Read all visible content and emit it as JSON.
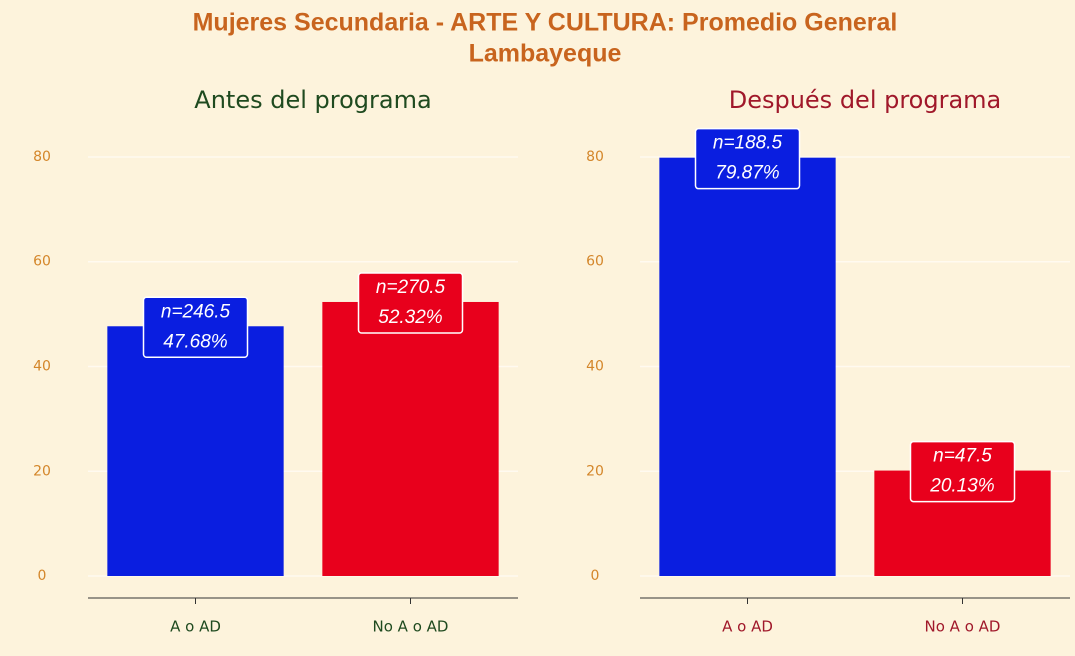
{
  "title": [
    "Mujeres Secundaria - ARTE Y CULTURA: Promedio General",
    "Lambayeque"
  ],
  "chart_data": [
    {
      "type": "bar",
      "title": "Antes del programa",
      "title_color": "#1f4a1f",
      "categories": [
        "A o AD",
        "No A o AD"
      ],
      "values": [
        47.68,
        52.32
      ],
      "value_labels": [
        "47.68%",
        "52.32%"
      ],
      "count_labels": [
        "n=246.5",
        "n=270.5"
      ],
      "colors": [
        "#0a1ee0",
        "#e8001c"
      ],
      "ylim": [
        -4.2,
        84.2
      ],
      "yticks": [
        0,
        20,
        40,
        60,
        80
      ],
      "grid": true
    },
    {
      "type": "bar",
      "title": "Después del programa",
      "title_color": "#a0182a",
      "categories": [
        "A o AD",
        "No A o AD"
      ],
      "values": [
        79.87,
        20.13
      ],
      "value_labels": [
        "79.87%",
        "20.13%"
      ],
      "count_labels": [
        "n=188.5",
        "n=47.5"
      ],
      "colors": [
        "#0a1ee0",
        "#e8001c"
      ],
      "ylim": [
        -4.2,
        84.2
      ],
      "yticks": [
        0,
        20,
        40,
        60,
        80
      ],
      "grid": true
    }
  ]
}
